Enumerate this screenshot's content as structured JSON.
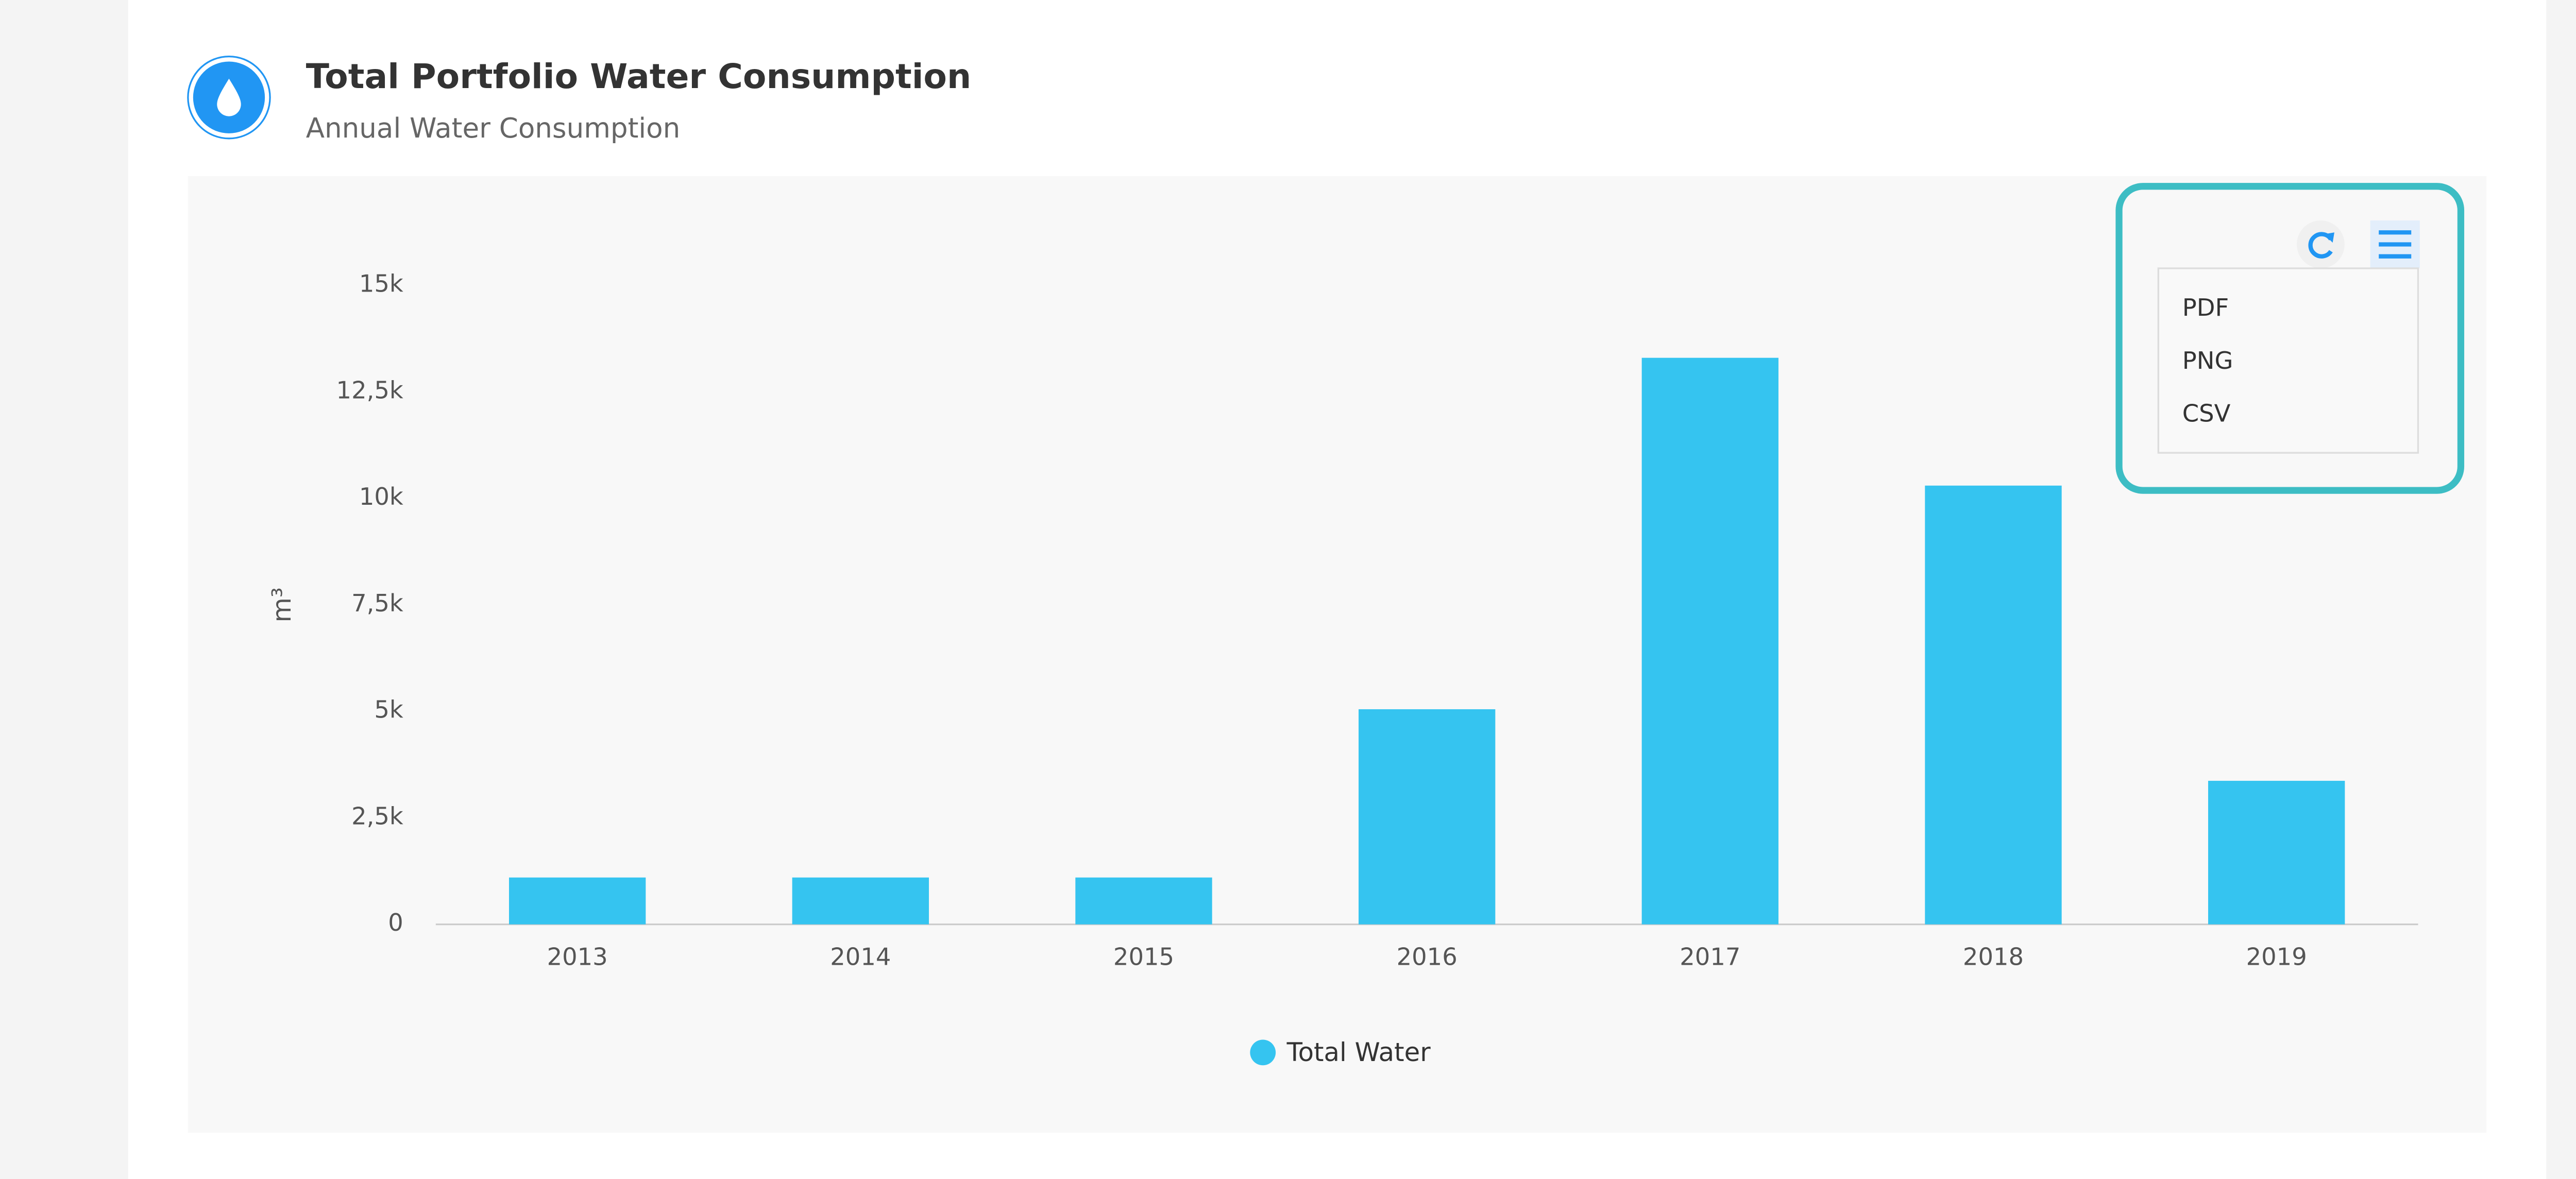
{
  "header": {
    "title": "Total Portfolio Water Consumption",
    "subtitle": "Annual Water Consumption"
  },
  "menu": {
    "items": [
      "PDF",
      "PNG",
      "CSV"
    ]
  },
  "chart_data": {
    "type": "bar",
    "y_label": "m³",
    "categories": [
      "2013",
      "2014",
      "2015",
      "2016",
      "2017",
      "2018",
      "2019"
    ],
    "series": [
      {
        "name": "Total Water",
        "color": "#35c4f0",
        "values": [
          1100,
          1100,
          1100,
          5050,
          13300,
          10300,
          3370
        ]
      }
    ],
    "ylim": [
      0,
      15000
    ],
    "yticks": [
      0,
      {
        "value": 2500,
        "label": "2,5k"
      },
      {
        "value": 5000,
        "label": "5k"
      },
      {
        "value": 7500,
        "label": "7,5k"
      },
      {
        "value": 10000,
        "label": "10k"
      },
      {
        "value": 12500,
        "label": "12,5k"
      },
      {
        "value": 15000,
        "label": "15k"
      }
    ],
    "grid": false,
    "legend": "bottom"
  }
}
